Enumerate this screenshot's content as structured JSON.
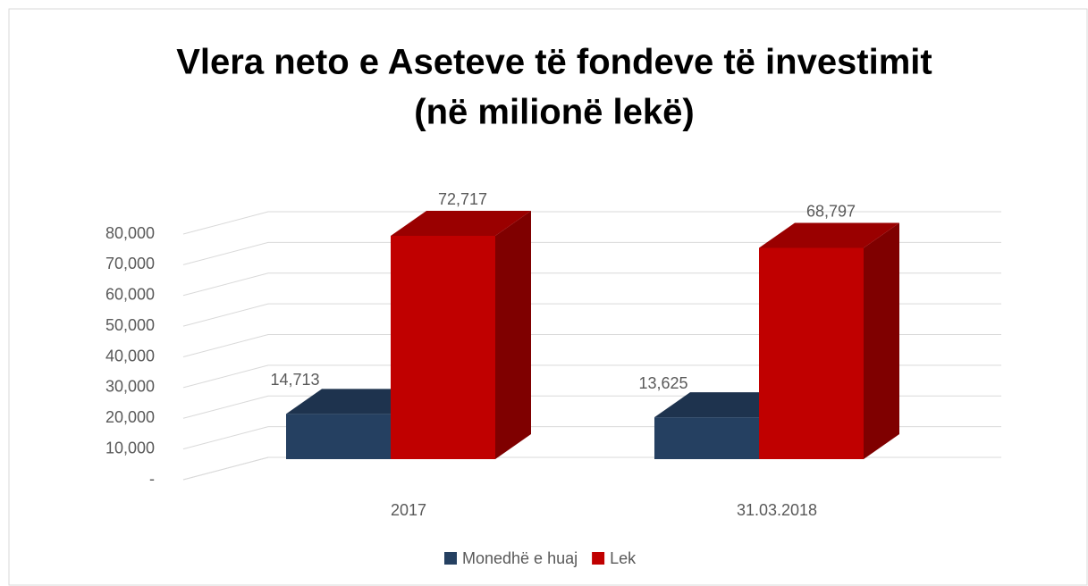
{
  "chart_data": {
    "type": "bar3d",
    "title": [
      "Vlera neto e Aseteve të fondeve të investimit",
      "(në milionë lekë)"
    ],
    "categories": [
      "2017",
      "31.03.2018"
    ],
    "series": [
      {
        "name": "Monedhë e huaj",
        "color": "#254061",
        "values": [
          14713,
          13625
        ],
        "value_labels": [
          "14,713",
          "13,625"
        ]
      },
      {
        "name": "Lek",
        "color": "#c00000",
        "values": [
          72717,
          68797
        ],
        "value_labels": [
          "72,717",
          "68,797"
        ]
      }
    ],
    "ylim": [
      0,
      90000
    ],
    "yticks": [
      {
        "value": 0,
        "label": "-"
      },
      {
        "value": 10000,
        "label": "10,000"
      },
      {
        "value": 20000,
        "label": "20,000"
      },
      {
        "value": 30000,
        "label": "30,000"
      },
      {
        "value": 40000,
        "label": "40,000"
      },
      {
        "value": 50000,
        "label": "50,000"
      },
      {
        "value": 60000,
        "label": "60,000"
      },
      {
        "value": 70000,
        "label": "70,000"
      },
      {
        "value": 80000,
        "label": "80,000"
      }
    ],
    "grid": true,
    "legend": "bottom"
  }
}
